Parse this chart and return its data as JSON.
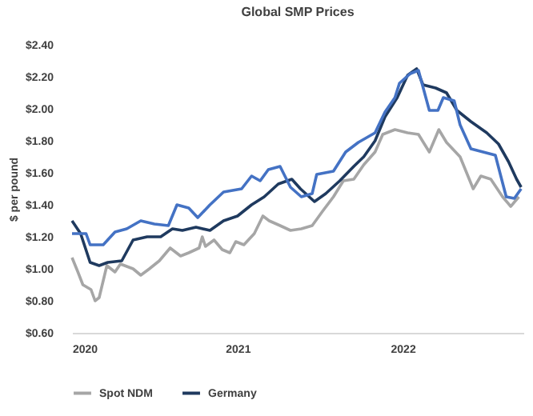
{
  "chart_data": {
    "type": "line",
    "title": "Global SMP Prices",
    "ylabel": "$ per pound",
    "xlim": [
      "2020",
      "2022-09-25"
    ],
    "xticks": [
      "2020",
      "2021",
      "2022"
    ],
    "ylim": [
      0.6,
      2.4
    ],
    "yticks": [
      {
        "value": 0.6,
        "label": "$0.60"
      },
      {
        "value": 0.8,
        "label": "$0.80"
      },
      {
        "value": 1.0,
        "label": "$1.00"
      },
      {
        "value": 1.2,
        "label": "$1.20"
      },
      {
        "value": 1.4,
        "label": "$1.40"
      },
      {
        "value": 1.6,
        "label": "$1.60"
      },
      {
        "value": 1.8,
        "label": "$1.80"
      },
      {
        "value": 2.0,
        "label": "$2.00"
      },
      {
        "value": 2.2,
        "label": "$2.20"
      },
      {
        "value": 2.4,
        "label": "$2.40"
      }
    ],
    "grid": false,
    "legend": "bottom",
    "marker": "none",
    "line_style": "solid",
    "series": [
      {
        "name": "Spot NDM",
        "color": "#a6a6a6",
        "x": [
          "2020-01-01",
          "2020-01-14",
          "2020-01-25",
          "2020-02-12",
          "2020-02-21",
          "2020-03-01",
          "2020-03-18",
          "2020-04-05",
          "2020-04-17",
          "2020-05-15",
          "2020-06-01",
          "2020-06-20",
          "2020-07-12",
          "2020-08-05",
          "2020-08-28",
          "2020-09-15",
          "2020-10-08",
          "2020-10-15",
          "2020-10-22",
          "2020-11-10",
          "2020-11-28",
          "2020-12-15",
          "2020-12-28",
          "2021-01-15",
          "2021-02-07",
          "2021-02-26",
          "2021-03-12",
          "2021-04-05",
          "2021-04-28",
          "2021-05-22",
          "2021-06-15",
          "2021-07-08",
          "2021-08-01",
          "2021-08-23",
          "2021-09-15",
          "2021-10-07",
          "2021-11-01",
          "2021-11-18",
          "2021-12-15",
          "2022-01-12",
          "2022-02-05",
          "2022-03-01",
          "2022-03-22",
          "2022-04-08",
          "2022-05-08",
          "2022-06-06",
          "2022-06-23",
          "2022-07-15",
          "2022-08-10",
          "2022-08-28",
          "2022-09-15"
        ],
        "values": [
          1.07,
          0.98,
          0.9,
          0.87,
          0.8,
          0.82,
          1.02,
          0.98,
          1.03,
          1.0,
          0.96,
          1.0,
          1.05,
          1.13,
          1.08,
          1.1,
          1.13,
          1.2,
          1.14,
          1.18,
          1.12,
          1.1,
          1.17,
          1.15,
          1.22,
          1.33,
          1.3,
          1.27,
          1.24,
          1.25,
          1.27,
          1.36,
          1.45,
          1.55,
          1.56,
          1.65,
          1.73,
          1.84,
          1.87,
          1.85,
          1.84,
          1.73,
          1.87,
          1.79,
          1.7,
          1.5,
          1.58,
          1.56,
          1.45,
          1.39,
          1.45
        ]
      },
      {
        "name": "Germany",
        "color": "#1f3a5f",
        "x": [
          "2020-01-01",
          "2020-01-20",
          "2020-02-10",
          "2020-03-01",
          "2020-03-20",
          "2020-04-20",
          "2020-05-15",
          "2020-06-15",
          "2020-07-15",
          "2020-08-10",
          "2020-09-01",
          "2020-10-01",
          "2020-11-01",
          "2020-12-01",
          "2021-01-01",
          "2021-02-01",
          "2021-03-01",
          "2021-04-01",
          "2021-05-01",
          "2021-05-20",
          "2021-06-20",
          "2021-07-15",
          "2021-08-15",
          "2021-09-15",
          "2021-10-07",
          "2021-11-01",
          "2021-11-23",
          "2021-12-20",
          "2022-01-12",
          "2022-02-01",
          "2022-02-15",
          "2022-03-15",
          "2022-04-08",
          "2022-05-01",
          "2022-06-01",
          "2022-07-06",
          "2022-08-01",
          "2022-08-23",
          "2022-09-10",
          "2022-09-20"
        ],
        "values": [
          1.3,
          1.22,
          1.04,
          1.02,
          1.04,
          1.05,
          1.18,
          1.2,
          1.2,
          1.25,
          1.24,
          1.26,
          1.24,
          1.3,
          1.33,
          1.4,
          1.45,
          1.53,
          1.56,
          1.5,
          1.42,
          1.47,
          1.55,
          1.64,
          1.7,
          1.8,
          1.95,
          2.07,
          2.21,
          2.25,
          2.15,
          2.13,
          2.1,
          1.99,
          1.92,
          1.85,
          1.78,
          1.67,
          1.56,
          1.51
        ]
      },
      {
        "color": "#4472c4",
        "x": [
          "2020-01-01",
          "2020-02-01",
          "2020-02-10",
          "2020-03-10",
          "2020-04-05",
          "2020-05-01",
          "2020-06-01",
          "2020-07-01",
          "2020-08-01",
          "2020-08-20",
          "2020-09-15",
          "2020-10-05",
          "2020-11-01",
          "2020-12-01",
          "2021-01-10",
          "2021-02-01",
          "2021-02-20",
          "2021-03-10",
          "2021-04-05",
          "2021-04-28",
          "2021-05-22",
          "2021-06-15",
          "2021-06-25",
          "2021-08-01",
          "2021-08-28",
          "2021-09-25",
          "2021-11-01",
          "2021-11-23",
          "2021-12-15",
          "2021-12-25",
          "2022-01-18",
          "2022-02-05",
          "2022-03-01",
          "2022-03-20",
          "2022-04-01",
          "2022-04-25",
          "2022-05-08",
          "2022-06-01",
          "2022-07-25",
          "2022-08-18",
          "2022-09-05",
          "2022-09-20"
        ],
        "values": [
          1.22,
          1.22,
          1.15,
          1.15,
          1.23,
          1.25,
          1.3,
          1.28,
          1.27,
          1.4,
          1.38,
          1.32,
          1.4,
          1.48,
          1.5,
          1.58,
          1.55,
          1.62,
          1.64,
          1.51,
          1.45,
          1.47,
          1.59,
          1.61,
          1.73,
          1.79,
          1.85,
          1.98,
          2.07,
          2.16,
          2.22,
          2.24,
          1.99,
          1.99,
          2.07,
          2.05,
          1.9,
          1.75,
          1.71,
          1.45,
          1.44,
          1.5
        ]
      }
    ]
  }
}
